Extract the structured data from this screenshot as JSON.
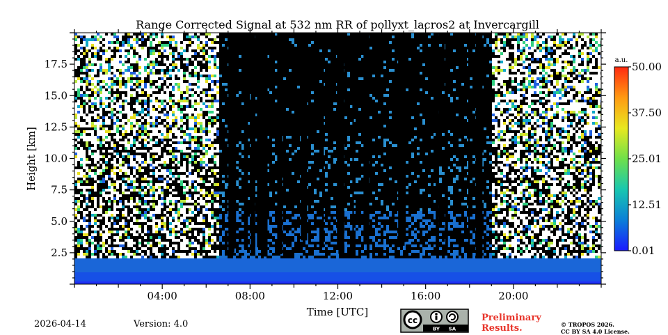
{
  "chart_data": {
    "type": "heatmap",
    "title": "Range Corrected Signal at 532 nm RR of pollyxt_lacros2 at Invercargill",
    "xlabel": "Time [UTC]",
    "ylabel": "Height [km]",
    "xlim_hours": [
      0,
      24
    ],
    "ylim_km": [
      0,
      20
    ],
    "x_ticks": [
      {
        "value": 4,
        "label": "04:00"
      },
      {
        "value": 8,
        "label": "08:00"
      },
      {
        "value": 12,
        "label": "12:00"
      },
      {
        "value": 16,
        "label": "16:00"
      },
      {
        "value": 20,
        "label": "20:00"
      }
    ],
    "y_ticks": [
      {
        "value": 2.5,
        "label": "2.5"
      },
      {
        "value": 5.0,
        "label": "5.0"
      },
      {
        "value": 7.5,
        "label": "7.5"
      },
      {
        "value": 10.0,
        "label": "10.0"
      },
      {
        "value": 12.5,
        "label": "12.5"
      },
      {
        "value": 15.0,
        "label": "15.0"
      },
      {
        "value": 17.5,
        "label": "17.5"
      }
    ],
    "colorbar": {
      "unit": "a.u.",
      "min": 0.01,
      "max": 50.0,
      "ticks": [
        {
          "value": 0.01,
          "label": "0.01"
        },
        {
          "value": 12.51,
          "label": "12.51"
        },
        {
          "value": 25.01,
          "label": "25.01"
        },
        {
          "value": 37.5,
          "label": "37.50"
        },
        {
          "value": 50.0,
          "label": "50.00"
        }
      ],
      "colors": [
        "#1a1aff",
        "#0b7fd8",
        "#18c7b0",
        "#6fe04a",
        "#e8e820",
        "#ff9a12",
        "#ff2a10"
      ]
    },
    "noise_regions_hours": [
      [
        0,
        6.5
      ],
      [
        19.0,
        24.0
      ]
    ],
    "daytime_black_hours": [
      6.5,
      19.0
    ]
  },
  "footer": {
    "date": "2026-04-14",
    "version": "Version: 4.0",
    "license_badge": "cc-by-sa-badge",
    "prelim_line1": "Preliminary",
    "prelim_line2": "Results.",
    "copyright_line1": "© TROPOS 2026.",
    "copyright_line2": "CC BY SA 4.0 License."
  }
}
